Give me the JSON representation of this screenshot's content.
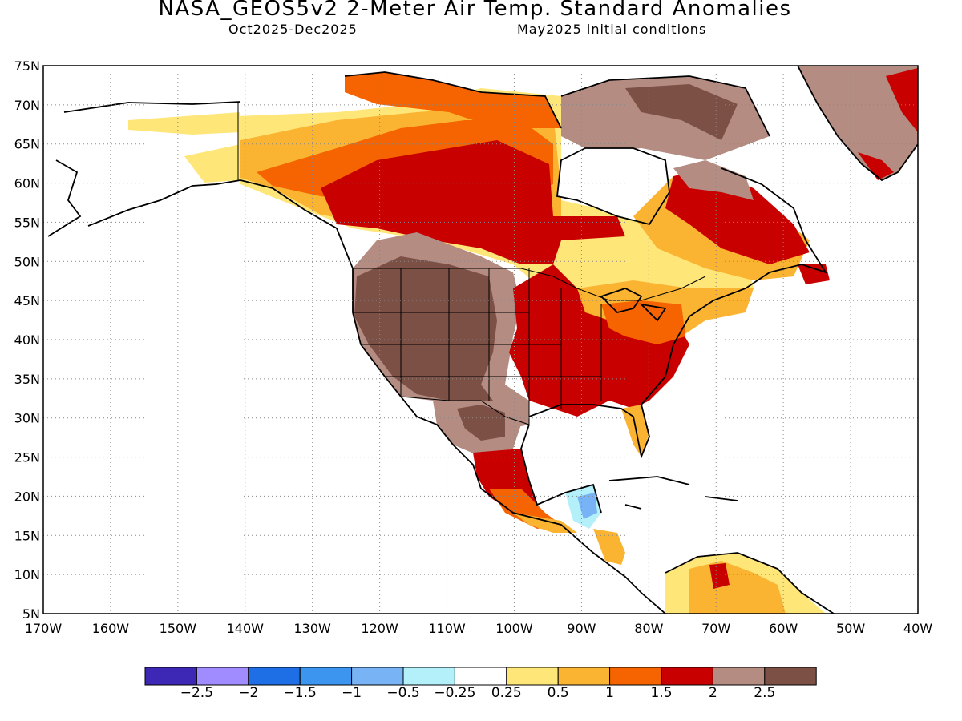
{
  "title": "NASA_GEOS5v2 2-Meter Air Temp. Standard Anomalies",
  "subtitle_left": "Oct2025-Dec2025",
  "subtitle_right": "May2025 initial conditions",
  "map": {
    "lon_range": [
      -170,
      -40
    ],
    "lat_range": [
      5,
      75
    ],
    "gridlines": "dotted",
    "lat_ticks": [
      "75N",
      "70N",
      "65N",
      "60N",
      "55N",
      "50N",
      "45N",
      "40N",
      "35N",
      "30N",
      "25N",
      "20N",
      "15N",
      "10N",
      "5N"
    ],
    "lon_ticks": [
      "170W",
      "160W",
      "150W",
      "140W",
      "130W",
      "120W",
      "110W",
      "100W",
      "90W",
      "80W",
      "70W",
      "60W",
      "50W",
      "40W"
    ]
  },
  "legend": {
    "colors": [
      "#3c28b4",
      "#a08cff",
      "#1e6ee6",
      "#3c96f0",
      "#78b4f5",
      "#b4f0fa",
      "#ffffff",
      "#ffe678",
      "#fab432",
      "#f56400",
      "#c80000",
      "#b48c82",
      "#7d5046"
    ],
    "labels": [
      "-2.5",
      "-2",
      "-1.5",
      "-1",
      "-0.5",
      "-0.25",
      "0.25",
      "0.5",
      "1",
      "1.5",
      "2",
      "2.5"
    ]
  },
  "colors": {
    "land_outline": "#000000",
    "frame": "#000000"
  }
}
